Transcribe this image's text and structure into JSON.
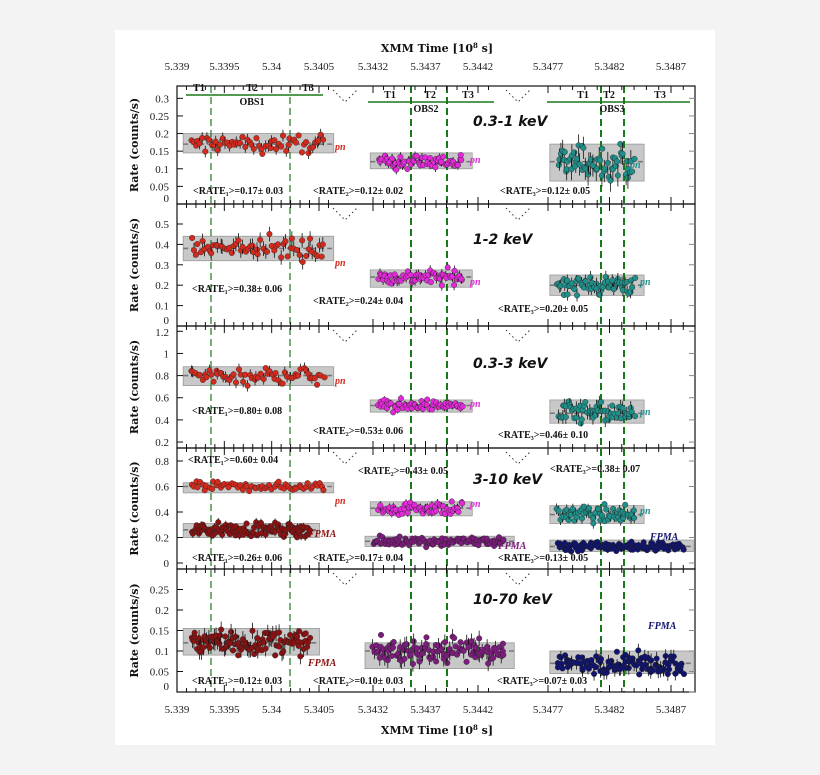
{
  "chart_data": {
    "type": "scatter",
    "xlabel": "XMM Time [10^8 s]",
    "xlabel_parts": {
      "main": "XMM Time [10",
      "exp": "8",
      "unit": " s]"
    },
    "x_ticks": [
      "5.339",
      "5.3395",
      "5.34",
      "5.3405",
      "5.3432",
      "5.3437",
      "5.3442",
      "5.3477",
      "5.3482",
      "5.3487"
    ],
    "x_tick_values": [
      5.339,
      5.3395,
      5.34,
      5.3405,
      5.3432,
      5.3437,
      5.3442,
      5.3477,
      5.3482,
      5.3487
    ],
    "broken_axis": true,
    "ylabel": "Rate (counts/s)",
    "interval_boundaries": [
      5.33935,
      5.34018,
      5.34357,
      5.34392,
      5.3482,
      5.34838
    ],
    "observations": [
      {
        "label": "OBS1",
        "intervals": [
          "T1",
          "T2",
          "T3"
        ]
      },
      {
        "label": "OBS2",
        "intervals": [
          "T1",
          "T2",
          "T3"
        ]
      },
      {
        "label": "OBS3",
        "intervals": [
          "T1",
          "T2",
          "T3"
        ]
      }
    ],
    "colors": {
      "pn1": "#d42a1e",
      "pn2": "#e22ad8",
      "pn3": "#1f8f8a",
      "fpma1": "#8a1212",
      "fpma2": "#7c1c7c",
      "fpma3": "#10146e",
      "green": "#1a7a1a",
      "band": "#c8c8c8"
    },
    "panels": [
      {
        "energy": "0.3-1 keV",
        "ylim": [
          0,
          0.335
        ],
        "yticks": [
          "0",
          "0.05",
          "0.1",
          "0.15",
          "0.2",
          "0.25",
          "0.3"
        ],
        "ytick_values": [
          0,
          0.05,
          0.1,
          0.15,
          0.2,
          0.25,
          0.3
        ],
        "series": [
          {
            "name": "pn",
            "obs": 1,
            "color": "#d42a1e",
            "x_range": [
              5.33915,
              5.34055
            ],
            "band": [
              0.145,
              0.2
            ],
            "mean": 0.17,
            "rate_label": "<RATE₁>=0.17± 0.03"
          },
          {
            "name": "pn",
            "obs": 2,
            "color": "#e22ad8",
            "x_range": [
              5.34325,
              5.34405
            ],
            "band": [
              0.1,
              0.145
            ],
            "mean": 0.12,
            "rate_label": "<RATE₂>=0.12± 0.02"
          },
          {
            "name": "pn",
            "obs": 3,
            "color": "#1f8f8a",
            "x_range": [
              5.34778,
              5.3484
            ],
            "band": [
              0.065,
              0.17
            ],
            "mean": 0.12,
            "rate_label": "<RATE₃>=0.12± 0.05"
          }
        ]
      },
      {
        "energy": "1-2 keV",
        "ylim": [
          0,
          0.598
        ],
        "yticks": [
          "0",
          "0.1",
          "0.2",
          "0.3",
          "0.4",
          "0.5"
        ],
        "ytick_values": [
          0,
          0.1,
          0.2,
          0.3,
          0.4,
          0.5
        ],
        "series": [
          {
            "name": "pn",
            "obs": 1,
            "color": "#d42a1e",
            "x_range": [
              5.33915,
              5.34055
            ],
            "band": [
              0.32,
              0.44
            ],
            "mean": 0.38,
            "rate_label": "<RATE₁>=0.38± 0.06"
          },
          {
            "name": "pn",
            "obs": 2,
            "color": "#e22ad8",
            "x_range": [
              5.34325,
              5.34405
            ],
            "band": [
              0.19,
              0.275
            ],
            "mean": 0.24,
            "rate_label": "<RATE₂>=0.24± 0.04"
          },
          {
            "name": "pn",
            "obs": 3,
            "color": "#1f8f8a",
            "x_range": [
              5.34778,
              5.3484
            ],
            "band": [
              0.15,
              0.25
            ],
            "mean": 0.2,
            "rate_label": "<RATE₃>=0.20± 0.05"
          }
        ]
      },
      {
        "energy": "0.3-3 keV",
        "ylim": [
          0.146,
          1.248
        ],
        "yticks": [
          "0.2",
          "0.4",
          "0.6",
          "0.8",
          "1",
          "1.2"
        ],
        "ytick_values": [
          0.2,
          0.4,
          0.6,
          0.8,
          1,
          1.2
        ],
        "series": [
          {
            "name": "pn",
            "obs": 1,
            "color": "#d42a1e",
            "x_range": [
              5.33915,
              5.34055
            ],
            "band": [
              0.71,
              0.88
            ],
            "mean": 0.8,
            "rate_label": "<RATE₁>=0.80± 0.08"
          },
          {
            "name": "pn",
            "obs": 2,
            "color": "#e22ad8",
            "x_range": [
              5.34325,
              5.34405
            ],
            "band": [
              0.47,
              0.58
            ],
            "mean": 0.53,
            "rate_label": "<RATE₂>=0.53± 0.06"
          },
          {
            "name": "pn",
            "obs": 3,
            "color": "#1f8f8a",
            "x_range": [
              5.34778,
              5.3484
            ],
            "band": [
              0.37,
              0.58
            ],
            "mean": 0.46,
            "rate_label": "<RATE₃>=0.46± 0.10"
          }
        ]
      },
      {
        "energy": "3-10 keV",
        "ylim": [
          -0.047,
          0.902
        ],
        "yticks": [
          "0",
          "0.2",
          "0.4",
          "0.6",
          "0.8"
        ],
        "ytick_values": [
          0,
          0.2,
          0.4,
          0.6,
          0.8
        ],
        "series": [
          {
            "name": "pn",
            "obs": 1,
            "color": "#d42a1e",
            "x_range": [
              5.33915,
              5.34055
            ],
            "band": [
              0.55,
              0.63
            ],
            "mean": 0.6,
            "rate_label": "<RATE₁>=0.60± 0.04"
          },
          {
            "name": "pn",
            "obs": 2,
            "color": "#e22ad8",
            "x_range": [
              5.34325,
              5.34405
            ],
            "band": [
              0.37,
              0.48
            ],
            "mean": 0.43,
            "rate_label": "<RATE₂>=0.43± 0.05"
          },
          {
            "name": "pn",
            "obs": 3,
            "color": "#1f8f8a",
            "x_range": [
              5.34778,
              5.3484
            ],
            "band": [
              0.31,
              0.45
            ],
            "mean": 0.38,
            "rate_label": "<RATE₃>=0.38± 0.07"
          },
          {
            "name": "FPMA",
            "obs": 1,
            "color": "#8a1212",
            "x_range": [
              5.33915,
              5.3404
            ],
            "band": [
              0.2,
              0.31
            ],
            "mean": 0.26,
            "rate_label": "<RATE₁>=0.26± 0.06"
          },
          {
            "name": "FPMA",
            "obs": 2,
            "color": "#7c1c7c",
            "x_range": [
              5.3432,
              5.34445
            ],
            "band": [
              0.13,
              0.21
            ],
            "mean": 0.17,
            "rate_label": "<RATE₂>=0.17± 0.04"
          },
          {
            "name": "FPMA",
            "obs": 3,
            "color": "#10146e",
            "x_range": [
              5.34778,
              5.3488
            ],
            "band": [
              0.09,
              0.18
            ],
            "mean": 0.13,
            "rate_label": "<RATE₃>=0.13± 0.05"
          }
        ]
      },
      {
        "energy": "10-70 keV",
        "ylim": [
          0,
          0.3
        ],
        "yticks": [
          "0",
          "0.05",
          "0.1",
          "0.15",
          "0.2",
          "0.25"
        ],
        "ytick_values": [
          0,
          0.05,
          0.1,
          0.15,
          0.2,
          0.25
        ],
        "series": [
          {
            "name": "FPMA",
            "obs": 1,
            "color": "#8a1212",
            "x_range": [
              5.33915,
              5.3404
            ],
            "band": [
              0.09,
              0.155
            ],
            "mean": 0.12,
            "rate_label": "<RATE₁>=0.12± 0.03"
          },
          {
            "name": "FPMA",
            "obs": 2,
            "color": "#7c1c7c",
            "x_range": [
              5.3432,
              5.34445
            ],
            "band": [
              0.057,
              0.12
            ],
            "mean": 0.1,
            "rate_label": "<RATE₂>=0.10± 0.03"
          },
          {
            "name": "FPMA",
            "obs": 3,
            "color": "#10146e",
            "x_range": [
              5.34778,
              5.3488
            ],
            "band": [
              0.045,
              0.1
            ],
            "mean": 0.07,
            "rate_label": "<RATE₃>=0.07± 0.03"
          }
        ]
      }
    ]
  }
}
